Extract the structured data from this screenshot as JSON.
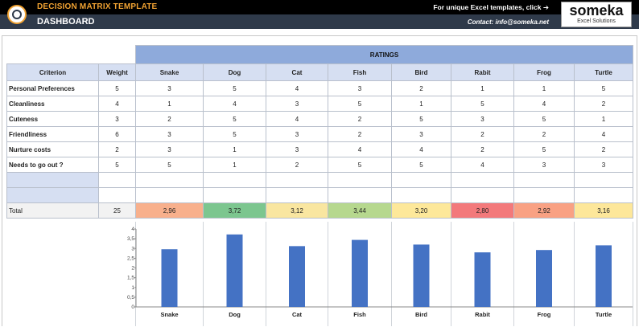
{
  "app": {
    "title": "DECISION MATRIX TEMPLATE",
    "page": "DASHBOARD",
    "promo_text": "For unique Excel templates, click ➔",
    "contact_text": "Contact: info@someka.net",
    "brand_name": "someka",
    "brand_sub": "Excel Solutions"
  },
  "table": {
    "ratings_header": "RATINGS",
    "criterion_header": "Criterion",
    "weight_header": "Weight",
    "options": [
      "Snake",
      "Dog",
      "Cat",
      "Fish",
      "Bird",
      "Rabit",
      "Frog",
      "Turtle"
    ],
    "rows": [
      {
        "criterion": "Personal Preferences",
        "weight": "5",
        "ratings": [
          "3",
          "5",
          "4",
          "3",
          "2",
          "1",
          "1",
          "5"
        ]
      },
      {
        "criterion": "Cleanliness",
        "weight": "4",
        "ratings": [
          "1",
          "4",
          "3",
          "5",
          "1",
          "5",
          "4",
          "2"
        ]
      },
      {
        "criterion": "Cuteness",
        "weight": "3",
        "ratings": [
          "2",
          "5",
          "4",
          "2",
          "5",
          "3",
          "5",
          "1"
        ]
      },
      {
        "criterion": "Friendliness",
        "weight": "6",
        "ratings": [
          "3",
          "5",
          "3",
          "2",
          "3",
          "2",
          "2",
          "4"
        ]
      },
      {
        "criterion": "Nurture costs",
        "weight": "2",
        "ratings": [
          "3",
          "1",
          "3",
          "4",
          "4",
          "2",
          "5",
          "2"
        ]
      },
      {
        "criterion": "Needs to go out ?",
        "weight": "5",
        "ratings": [
          "5",
          "1",
          "2",
          "5",
          "5",
          "4",
          "3",
          "3"
        ]
      },
      {
        "criterion": "",
        "weight": "",
        "ratings": [
          "",
          "",
          "",
          "",
          "",
          "",
          "",
          ""
        ]
      },
      {
        "criterion": "",
        "weight": "",
        "ratings": [
          "",
          "",
          "",
          "",
          "",
          "",
          "",
          ""
        ]
      }
    ],
    "total_label": "Total",
    "total_weight": "25",
    "totals": [
      "2,96",
      "3,72",
      "3,12",
      "3,44",
      "3,20",
      "2,80",
      "2,92",
      "3,16"
    ],
    "total_colors": [
      "#f8b08c",
      "#7cc68f",
      "#f9e6a0",
      "#b6d88e",
      "#fde89a",
      "#f3797b",
      "#f9a183",
      "#fde79a"
    ]
  },
  "chart_data": {
    "type": "bar",
    "categories": [
      "Snake",
      "Dog",
      "Cat",
      "Fish",
      "Bird",
      "Rabit",
      "Frog",
      "Turtle"
    ],
    "values": [
      2.96,
      3.72,
      3.12,
      3.44,
      3.2,
      2.8,
      2.92,
      3.16
    ],
    "ylim": [
      0,
      4
    ],
    "yticks": [
      "0",
      "0,5",
      "1",
      "1,5",
      "2",
      "2,5",
      "3",
      "3,5",
      "4"
    ],
    "bar_color": "#4472c4",
    "grid": false,
    "title": "",
    "xlabel": "",
    "ylabel": ""
  }
}
